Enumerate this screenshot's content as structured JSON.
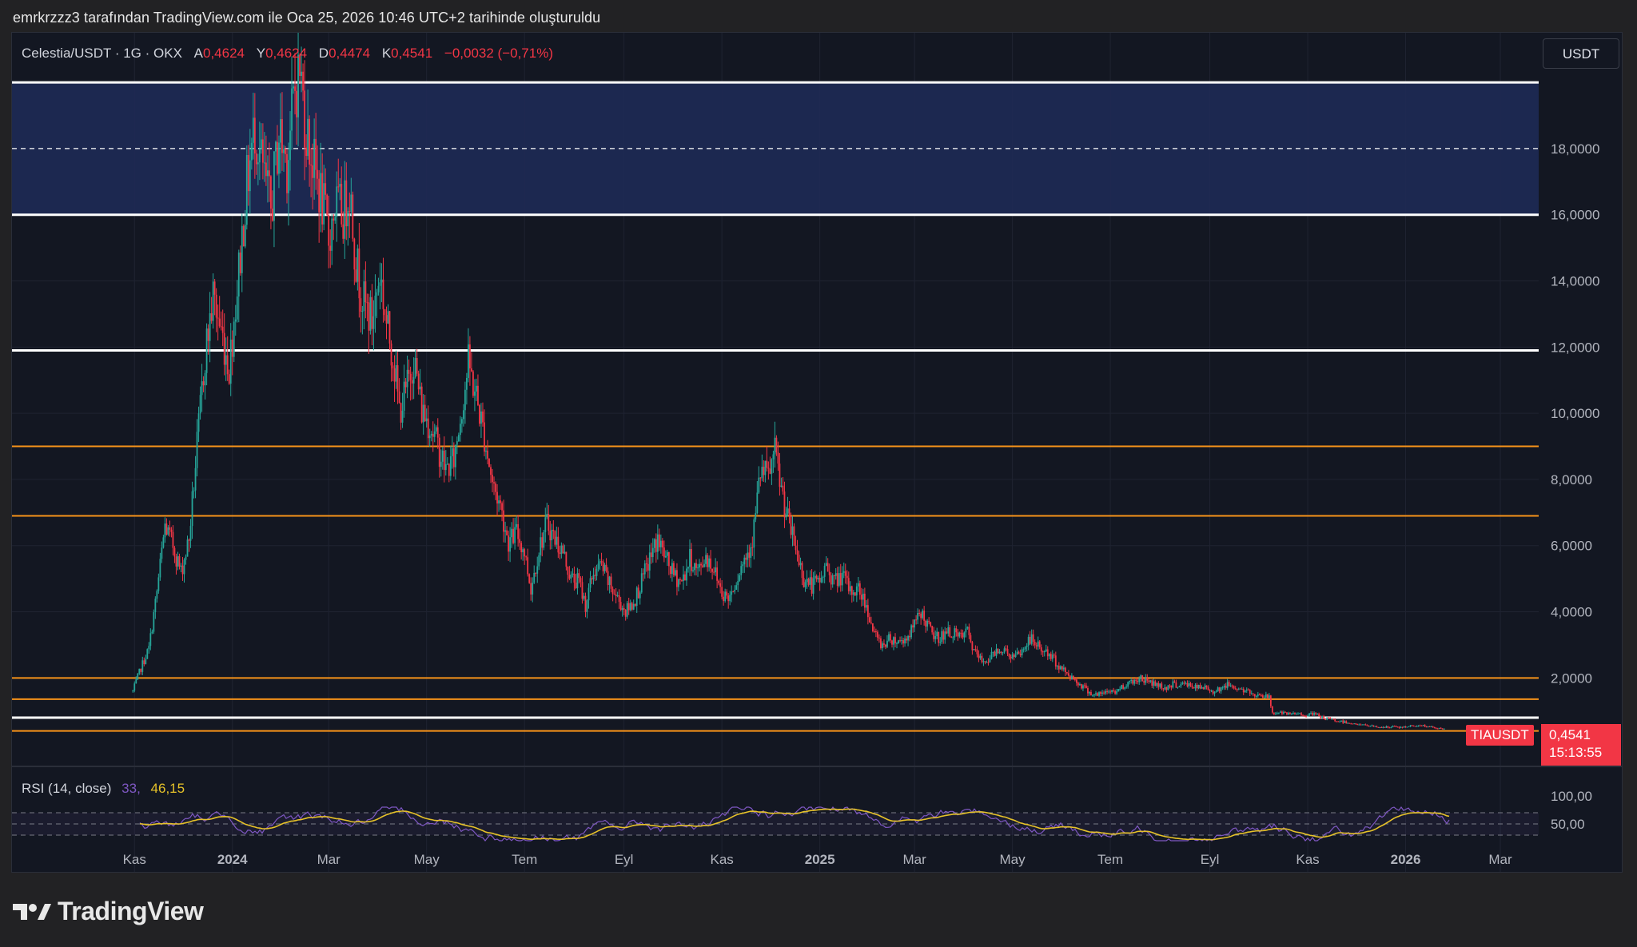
{
  "caption": "emrkrzzz3 tarafından TradingView.com ile Oca 25, 2026 10:46 UTC+2 tarihinde oluşturuldu",
  "legend": {
    "symbol": "Celestia/USDT · 1G · OKX",
    "open_label": "A",
    "open": "0,4624",
    "high_label": "Y",
    "high": "0,4624",
    "low_label": "D",
    "low": "0,4474",
    "close_label": "K",
    "close": "0,4541",
    "change": "−0,0032 (−0,71%)"
  },
  "currency": "USDT",
  "ticker_tag": "TIAUSDT",
  "last_price": "0,4541",
  "countdown": "15:13:55",
  "rsi": {
    "label": "RSI (14, close)",
    "value_rsi": "33,",
    "value_ma": "46,15",
    "tick_100": "100,00",
    "tick_50": "50,00"
  },
  "footer": {
    "brand": "TradingView"
  },
  "colors": {
    "background": "#131722",
    "up": "#26a69a",
    "down": "#f23645",
    "zone": "#1e2a55",
    "orange": "#f7931a",
    "white_line": "#ffffff",
    "rsi_line": "#7e57c2",
    "rsi_ma": "#e6c229"
  },
  "chart_data": {
    "type": "candlestick",
    "title": "Celestia/USDT · 1G · OKX",
    "y_axis_ticks": [
      "2,0000",
      "4,0000",
      "6,0000",
      "8,0000",
      "10,0000",
      "12,0000",
      "14,0000",
      "16,0000",
      "18,0000"
    ],
    "y_tick_values": [
      2,
      4,
      6,
      8,
      10,
      12,
      14,
      16,
      18
    ],
    "x_axis_ticks": [
      "Kas",
      "2024",
      "Mar",
      "May",
      "Tem",
      "Eyl",
      "Kas",
      "2025",
      "Mar",
      "May",
      "Tem",
      "Eyl",
      "Kas",
      "2026",
      "Mar"
    ],
    "x_tick_bold": [
      false,
      true,
      false,
      false,
      false,
      false,
      false,
      true,
      false,
      false,
      false,
      false,
      false,
      true,
      false
    ],
    "x_tick_dates": [
      "2023-11-01",
      "2024-01-01",
      "2024-03-01",
      "2024-05-01",
      "2024-07-01",
      "2024-09-01",
      "2024-11-01",
      "2025-01-01",
      "2025-03-01",
      "2025-05-01",
      "2025-07-01",
      "2025-09-01",
      "2025-11-01",
      "2026-01-01",
      "2026-03-01"
    ],
    "ylim": [
      -0.6,
      21.5
    ],
    "close_series": [
      [
        "2023-10-31",
        1.6
      ],
      [
        "2023-11-05",
        2.3
      ],
      [
        "2023-11-10",
        2.9
      ],
      [
        "2023-11-15",
        4.6
      ],
      [
        "2023-11-20",
        6.6
      ],
      [
        "2023-11-25",
        6.0
      ],
      [
        "2023-11-30",
        5.2
      ],
      [
        "2023-12-05",
        6.2
      ],
      [
        "2023-12-10",
        9.0
      ],
      [
        "2023-12-15",
        11.8
      ],
      [
        "2023-12-20",
        13.5
      ],
      [
        "2023-12-25",
        12.5
      ],
      [
        "2023-12-30",
        11.4
      ],
      [
        "2024-01-05",
        14.3
      ],
      [
        "2024-01-10",
        16.9
      ],
      [
        "2024-01-15",
        18.7
      ],
      [
        "2024-01-20",
        17.3
      ],
      [
        "2024-01-25",
        16.1
      ],
      [
        "2024-01-30",
        18.5
      ],
      [
        "2024-02-04",
        17.6
      ],
      [
        "2024-02-09",
        19.8
      ],
      [
        "2024-02-12",
        20.4
      ],
      [
        "2024-02-16",
        18.6
      ],
      [
        "2024-02-20",
        17.6
      ],
      [
        "2024-02-25",
        16.6
      ],
      [
        "2024-03-01",
        15.3
      ],
      [
        "2024-03-05",
        16.3
      ],
      [
        "2024-03-10",
        16.0
      ],
      [
        "2024-03-14",
        16.9
      ],
      [
        "2024-03-18",
        14.6
      ],
      [
        "2024-03-23",
        13.3
      ],
      [
        "2024-03-28",
        12.8
      ],
      [
        "2024-04-02",
        14.3
      ],
      [
        "2024-04-06",
        12.7
      ],
      [
        "2024-04-10",
        11.8
      ],
      [
        "2024-04-14",
        10.1
      ],
      [
        "2024-04-18",
        10.6
      ],
      [
        "2024-04-23",
        11.7
      ],
      [
        "2024-04-28",
        10.1
      ],
      [
        "2024-05-03",
        9.7
      ],
      [
        "2024-05-08",
        9.0
      ],
      [
        "2024-05-13",
        8.3
      ],
      [
        "2024-05-18",
        8.6
      ],
      [
        "2024-05-23",
        10.2
      ],
      [
        "2024-05-27",
        11.5
      ],
      [
        "2024-06-01",
        10.5
      ],
      [
        "2024-06-06",
        9.3
      ],
      [
        "2024-06-11",
        7.9
      ],
      [
        "2024-06-16",
        7.2
      ],
      [
        "2024-06-21",
        6.1
      ],
      [
        "2024-06-26",
        6.4
      ],
      [
        "2024-07-01",
        5.8
      ],
      [
        "2024-07-05",
        4.7
      ],
      [
        "2024-07-10",
        5.9
      ],
      [
        "2024-07-15",
        6.7
      ],
      [
        "2024-07-20",
        6.2
      ],
      [
        "2024-07-25",
        5.8
      ],
      [
        "2024-07-30",
        5.0
      ],
      [
        "2024-08-04",
        4.9
      ],
      [
        "2024-08-08",
        4.2
      ],
      [
        "2024-08-13",
        5.2
      ],
      [
        "2024-08-18",
        5.4
      ],
      [
        "2024-08-23",
        4.8
      ],
      [
        "2024-08-28",
        4.4
      ],
      [
        "2024-09-02",
        4.0
      ],
      [
        "2024-09-07",
        4.3
      ],
      [
        "2024-09-12",
        4.9
      ],
      [
        "2024-09-17",
        5.6
      ],
      [
        "2024-09-22",
        6.2
      ],
      [
        "2024-09-27",
        5.6
      ],
      [
        "2024-10-02",
        5.1
      ],
      [
        "2024-10-07",
        4.9
      ],
      [
        "2024-10-12",
        5.6
      ],
      [
        "2024-10-17",
        5.2
      ],
      [
        "2024-10-22",
        5.7
      ],
      [
        "2024-10-27",
        5.3
      ],
      [
        "2024-11-01",
        4.6
      ],
      [
        "2024-11-05",
        4.4
      ],
      [
        "2024-11-10",
        5.0
      ],
      [
        "2024-11-15",
        5.6
      ],
      [
        "2024-11-20",
        6.2
      ],
      [
        "2024-11-25",
        8.2
      ],
      [
        "2024-11-30",
        8.1
      ],
      [
        "2024-12-04",
        8.8
      ],
      [
        "2024-12-08",
        7.7
      ],
      [
        "2024-12-12",
        6.8
      ],
      [
        "2024-12-17",
        5.9
      ],
      [
        "2024-12-22",
        5.0
      ],
      [
        "2024-12-27",
        4.8
      ],
      [
        "2025-01-01",
        4.9
      ],
      [
        "2025-01-05",
        5.4
      ],
      [
        "2025-01-10",
        4.9
      ],
      [
        "2025-01-15",
        5.1
      ],
      [
        "2025-01-20",
        4.6
      ],
      [
        "2025-01-25",
        4.7
      ],
      [
        "2025-01-30",
        4.2
      ],
      [
        "2025-02-04",
        3.3
      ],
      [
        "2025-02-09",
        3.0
      ],
      [
        "2025-02-14",
        3.2
      ],
      [
        "2025-02-19",
        3.1
      ],
      [
        "2025-02-24",
        3.2
      ],
      [
        "2025-03-01",
        3.6
      ],
      [
        "2025-03-05",
        4.0
      ],
      [
        "2025-03-09",
        3.6
      ],
      [
        "2025-03-14",
        3.2
      ],
      [
        "2025-03-19",
        3.3
      ],
      [
        "2025-03-24",
        3.4
      ],
      [
        "2025-03-29",
        3.2
      ],
      [
        "2025-04-03",
        3.4
      ],
      [
        "2025-04-07",
        2.8
      ],
      [
        "2025-04-12",
        2.5
      ],
      [
        "2025-04-17",
        2.6
      ],
      [
        "2025-04-22",
        2.9
      ],
      [
        "2025-04-27",
        2.8
      ],
      [
        "2025-05-02",
        2.6
      ],
      [
        "2025-05-07",
        2.8
      ],
      [
        "2025-05-12",
        3.2
      ],
      [
        "2025-05-16",
        3.0
      ],
      [
        "2025-05-21",
        2.8
      ],
      [
        "2025-05-26",
        2.6
      ],
      [
        "2025-05-31",
        2.3
      ],
      [
        "2025-06-05",
        2.1
      ],
      [
        "2025-06-10",
        1.9
      ],
      [
        "2025-06-15",
        1.7
      ],
      [
        "2025-06-20",
        1.5
      ],
      [
        "2025-06-25",
        1.5
      ],
      [
        "2025-06-30",
        1.6
      ],
      [
        "2025-07-05",
        1.6
      ],
      [
        "2025-07-10",
        1.8
      ],
      [
        "2025-07-15",
        1.9
      ],
      [
        "2025-07-20",
        2.0
      ],
      [
        "2025-07-25",
        1.9
      ],
      [
        "2025-07-30",
        1.8
      ],
      [
        "2025-08-04",
        1.7
      ],
      [
        "2025-08-09",
        1.8
      ],
      [
        "2025-08-14",
        1.8
      ],
      [
        "2025-08-19",
        1.8
      ],
      [
        "2025-08-24",
        1.7
      ],
      [
        "2025-08-29",
        1.7
      ],
      [
        "2025-09-03",
        1.6
      ],
      [
        "2025-09-08",
        1.7
      ],
      [
        "2025-09-13",
        1.8
      ],
      [
        "2025-09-18",
        1.7
      ],
      [
        "2025-09-23",
        1.6
      ],
      [
        "2025-09-28",
        1.5
      ],
      [
        "2025-10-03",
        1.5
      ],
      [
        "2025-10-08",
        1.4
      ],
      [
        "2025-10-10",
        0.95
      ],
      [
        "2025-10-14",
        0.95
      ],
      [
        "2025-10-20",
        0.9
      ],
      [
        "2025-10-26",
        0.92
      ],
      [
        "2025-11-01",
        0.88
      ],
      [
        "2025-11-05",
        0.92
      ],
      [
        "2025-11-10",
        0.8
      ],
      [
        "2025-11-15",
        0.75
      ],
      [
        "2025-11-20",
        0.7
      ],
      [
        "2025-11-25",
        0.66
      ],
      [
        "2025-11-30",
        0.62
      ],
      [
        "2025-12-05",
        0.58
      ],
      [
        "2025-12-10",
        0.55
      ],
      [
        "2025-12-15",
        0.52
      ],
      [
        "2025-12-20",
        0.51
      ],
      [
        "2025-12-25",
        0.53
      ],
      [
        "2025-12-30",
        0.5
      ],
      [
        "2026-01-04",
        0.55
      ],
      [
        "2026-01-09",
        0.57
      ],
      [
        "2026-01-14",
        0.54
      ],
      [
        "2026-01-19",
        0.49
      ],
      [
        "2026-01-25",
        0.4541
      ]
    ],
    "horizontal_levels": [
      {
        "price": 20.0,
        "color": "white"
      },
      {
        "price": 16.0,
        "color": "white"
      },
      {
        "price": 11.9,
        "color": "white"
      },
      {
        "price": 9.0,
        "color": "orange"
      },
      {
        "price": 6.9,
        "color": "orange"
      },
      {
        "price": 2.0,
        "color": "orange"
      },
      {
        "price": 1.36,
        "color": "orange"
      },
      {
        "price": 0.8,
        "color": "white"
      },
      {
        "price": 0.4,
        "color": "orange"
      }
    ],
    "zone": {
      "from": 16.0,
      "to": 20.0,
      "mid_dashed": 18.0
    },
    "rsi_ylim": [
      0,
      100
    ],
    "rsi_bands": [
      70,
      50,
      30
    ]
  }
}
